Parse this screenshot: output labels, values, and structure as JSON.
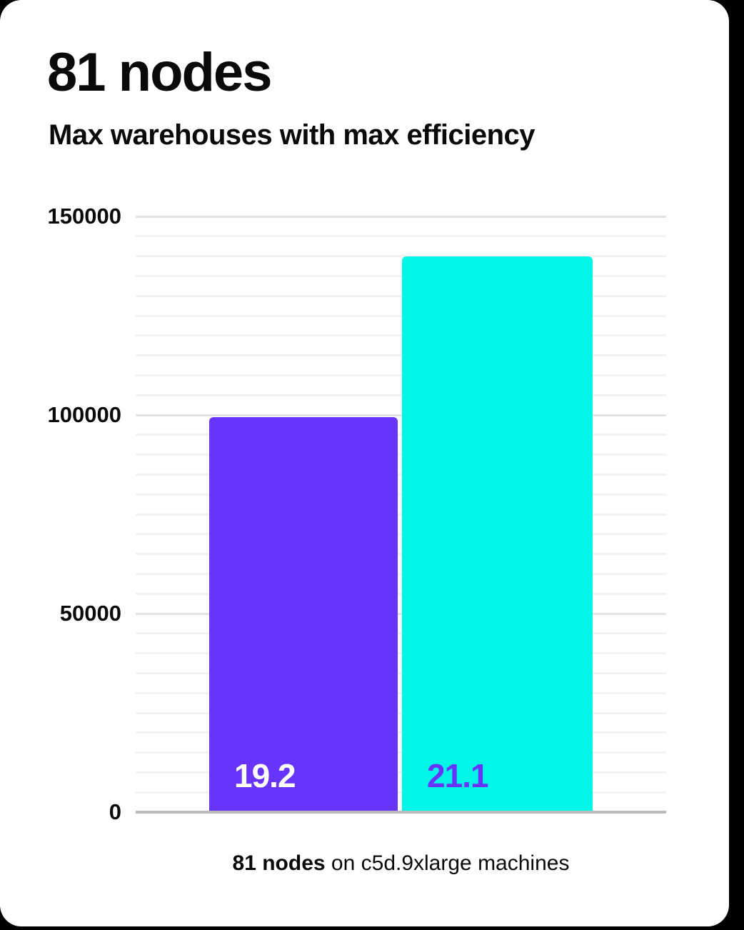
{
  "page": {
    "title": "81 nodes",
    "subtitle": "Max warehouses with max efficiency",
    "caption_bold": "81 nodes",
    "caption_rest": " on c5d.9xlarge machines"
  },
  "colors": {
    "card_bg": "#ffffff",
    "page_bg": "#000000",
    "text": "#0a0a0a",
    "bar_1": "#6634fa",
    "bar_1_label": "#ffffff",
    "bar_2": "#00f7e8",
    "bar_2_label": "#6634fa",
    "gridline_minor": "#f2f2f2",
    "gridline_major": "#e3e3e3",
    "axis_line": "#bcbcbc"
  },
  "chart_data": {
    "type": "bar",
    "title": "81 nodes",
    "subtitle": "Max warehouses with max efficiency",
    "caption": "81 nodes on c5d.9xlarge machines",
    "xlabel": "",
    "ylabel": "",
    "ylim": [
      0,
      150000
    ],
    "yticks": [
      0,
      50000,
      100000,
      150000
    ],
    "gridline_step": 5000,
    "major_gridline_step": 50000,
    "grid": true,
    "legend": false,
    "bars": [
      {
        "label": "19.2",
        "value": 99500,
        "color": "#6634fa",
        "label_color": "#ffffff"
      },
      {
        "label": "21.1",
        "value": 140000,
        "color": "#00f7e8",
        "label_color": "#6634fa"
      }
    ]
  }
}
